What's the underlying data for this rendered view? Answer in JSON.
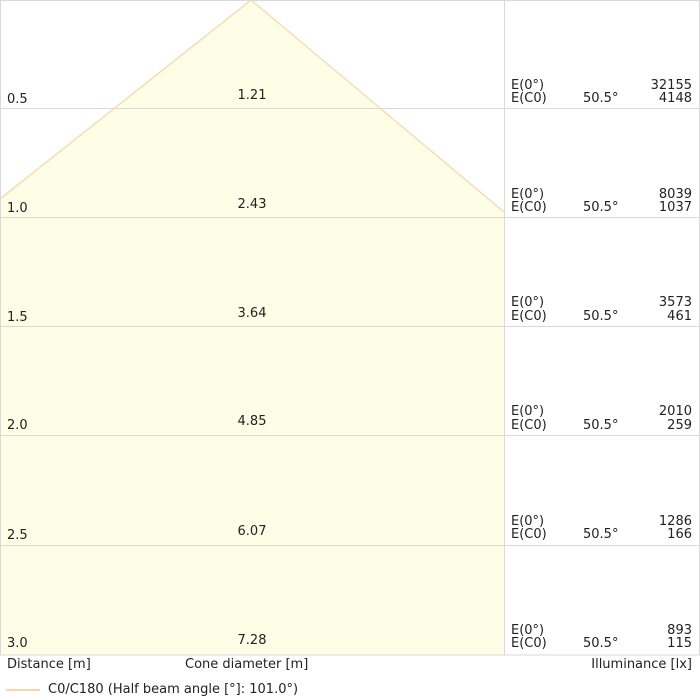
{
  "rows": [
    {
      "distance": "0.5",
      "diameter": "1.21",
      "e0_label": "E(0°)",
      "ec0_label": "E(C0)",
      "angle": "50.5°",
      "e0_value": "32155",
      "ec0_value": "4148"
    },
    {
      "distance": "1.0",
      "diameter": "2.43",
      "e0_label": "E(0°)",
      "ec0_label": "E(C0)",
      "angle": "50.5°",
      "e0_value": "8039",
      "ec0_value": "1037"
    },
    {
      "distance": "1.5",
      "diameter": "3.64",
      "e0_label": "E(0°)",
      "ec0_label": "E(C0)",
      "angle": "50.5°",
      "e0_value": "3573",
      "ec0_value": "461"
    },
    {
      "distance": "2.0",
      "diameter": "4.85",
      "e0_label": "E(0°)",
      "ec0_label": "E(C0)",
      "angle": "50.5°",
      "e0_value": "2010",
      "ec0_value": "259"
    },
    {
      "distance": "2.5",
      "diameter": "6.07",
      "e0_label": "E(0°)",
      "ec0_label": "E(C0)",
      "angle": "50.5°",
      "e0_value": "1286",
      "ec0_value": "166"
    },
    {
      "distance": "3.0",
      "diameter": "7.28",
      "e0_label": "E(0°)",
      "ec0_label": "E(C0)",
      "angle": "50.5°",
      "e0_value": "893",
      "ec0_value": "115"
    }
  ],
  "footer": {
    "distance_label": "Distance [m]",
    "diameter_label": "Cone diameter [m]",
    "illuminance_label": "Illuminance [lx]"
  },
  "legend": {
    "label": "C0/C180 (Half beam angle [°]: 101.0°)"
  },
  "colors": {
    "fill": "#fefde5",
    "line": "#f8d6a8",
    "grid": "#d9d9d9"
  }
}
